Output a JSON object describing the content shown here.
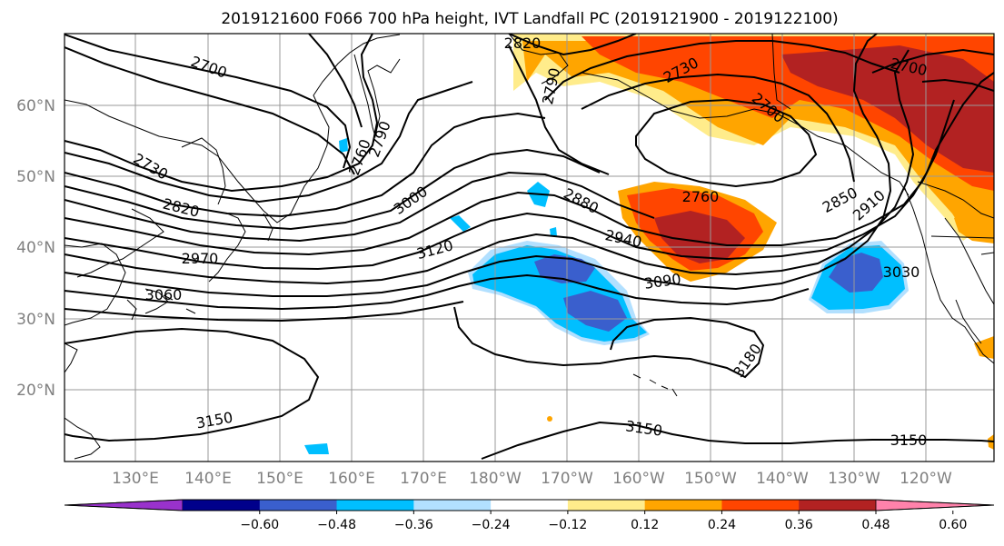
{
  "title": "2019121600 F066 700 hPa height, IVT Landfall PC (2019121900 - 2019122100)",
  "lat_labels": [
    "60°N",
    "50°N",
    "40°N",
    "30°N",
    "20°N"
  ],
  "lon_labels": [
    "130°E",
    "140°E",
    "150°E",
    "160°E",
    "170°E",
    "180°W",
    "170°W",
    "160°W",
    "150°W",
    "140°W",
    "130°W",
    "120°W"
  ],
  "contour_labels": [
    {
      "v": "2700"
    },
    {
      "v": "2820"
    },
    {
      "v": "2790"
    },
    {
      "v": "2730"
    },
    {
      "v": "2700"
    },
    {
      "v": "2700"
    },
    {
      "v": "2730"
    },
    {
      "v": "2820"
    },
    {
      "v": "2970"
    },
    {
      "v": "3060"
    },
    {
      "v": "2760"
    },
    {
      "v": "2790"
    },
    {
      "v": "3000"
    },
    {
      "v": "2880"
    },
    {
      "v": "2760"
    },
    {
      "v": "2940"
    },
    {
      "v": "3120"
    },
    {
      "v": "3090"
    },
    {
      "v": "2850"
    },
    {
      "v": "2910"
    },
    {
      "v": "3030"
    },
    {
      "v": "3180"
    },
    {
      "v": "3150"
    },
    {
      "v": "3150"
    },
    {
      "v": "3150"
    }
  ],
  "colorbar": {
    "colors": [
      "#9932cc",
      "#00008b",
      "#3a5fcd",
      "#00bfff",
      "#b2e0ff",
      "#ffffff",
      "#ffec8b",
      "#ffa500",
      "#ff4500",
      "#b22222",
      "#ff82ab"
    ],
    "ticks": [
      "−0.60",
      "−0.48",
      "−0.36",
      "−0.24",
      "−0.12",
      "0.12",
      "0.24",
      "0.36",
      "0.48",
      "0.60"
    ]
  }
}
